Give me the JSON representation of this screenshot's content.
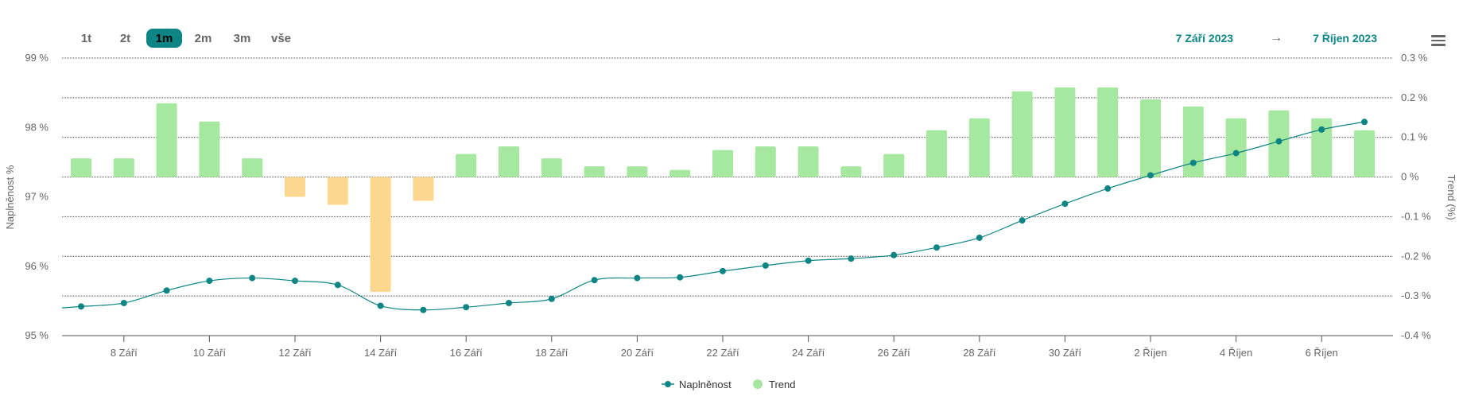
{
  "range_selector": {
    "buttons": [
      {
        "label": "1t",
        "active": false
      },
      {
        "label": "2t",
        "active": false
      },
      {
        "label": "1m",
        "active": true
      },
      {
        "label": "2m",
        "active": false
      },
      {
        "label": "3m",
        "active": false
      },
      {
        "label": "vše",
        "active": false
      }
    ]
  },
  "date_range": {
    "from": "7 Září 2023",
    "arrow": "→",
    "to": "7 Říjen 2023"
  },
  "colors": {
    "line": "#0e8585",
    "positive_bar": "#a6e8a0",
    "negative_bar": "#fdd78f",
    "accent": "#0e8585"
  },
  "menu_icon": "hamburger-menu-icon",
  "chart_data": {
    "type": "bar+line",
    "x_tick_labels": [
      "8 Září",
      "10 Září",
      "12 Září",
      "14 Září",
      "16 Září",
      "18 Září",
      "20 Září",
      "22 Září",
      "24 Září",
      "26 Září",
      "28 Září",
      "30 Září",
      "2 Říjen",
      "4 Říjen",
      "6 Říjen"
    ],
    "y_left": {
      "label": "Naplněnost %",
      "ylim": [
        95,
        99
      ],
      "ticks": [
        "95 %",
        "96 %",
        "97 %",
        "98 %",
        "99 %"
      ]
    },
    "y_right": {
      "label": "Trend (%)",
      "ylim": [
        -0.4,
        0.3
      ],
      "ticks": [
        "-0.4 %",
        "-0.3 %",
        "-0.2 %",
        "-0.1 %",
        "0 %",
        "0.1 %",
        "0.2 %",
        "0.3 %"
      ]
    },
    "series": [
      {
        "name": "Naplněnost",
        "type": "line",
        "axis": "left",
        "values": [
          95.42,
          95.47,
          95.65,
          95.79,
          95.83,
          95.79,
          95.73,
          95.43,
          95.37,
          95.41,
          95.47,
          95.53,
          95.8,
          95.83,
          95.84,
          95.93,
          96.01,
          96.08,
          96.11,
          96.16,
          96.27,
          96.41,
          96.66,
          96.9,
          97.12,
          97.31,
          97.49,
          97.63,
          97.8,
          97.97,
          98.08
        ]
      },
      {
        "name": "Trend",
        "type": "bar",
        "axis": "right",
        "values": [
          0.047,
          0.047,
          0.186,
          0.14,
          0.047,
          -0.05,
          -0.07,
          -0.29,
          -0.06,
          0.058,
          0.077,
          0.047,
          0.027,
          0.027,
          0.018,
          0.068,
          0.077,
          0.077,
          0.027,
          0.058,
          0.118,
          0.148,
          0.216,
          0.226,
          0.226,
          0.196,
          0.178,
          0.148,
          0.168,
          0.148,
          0.118
        ]
      }
    ],
    "legend": {
      "placement": "bottom-center",
      "items": [
        "Naplněnost",
        "Trend"
      ]
    },
    "grid": true
  }
}
